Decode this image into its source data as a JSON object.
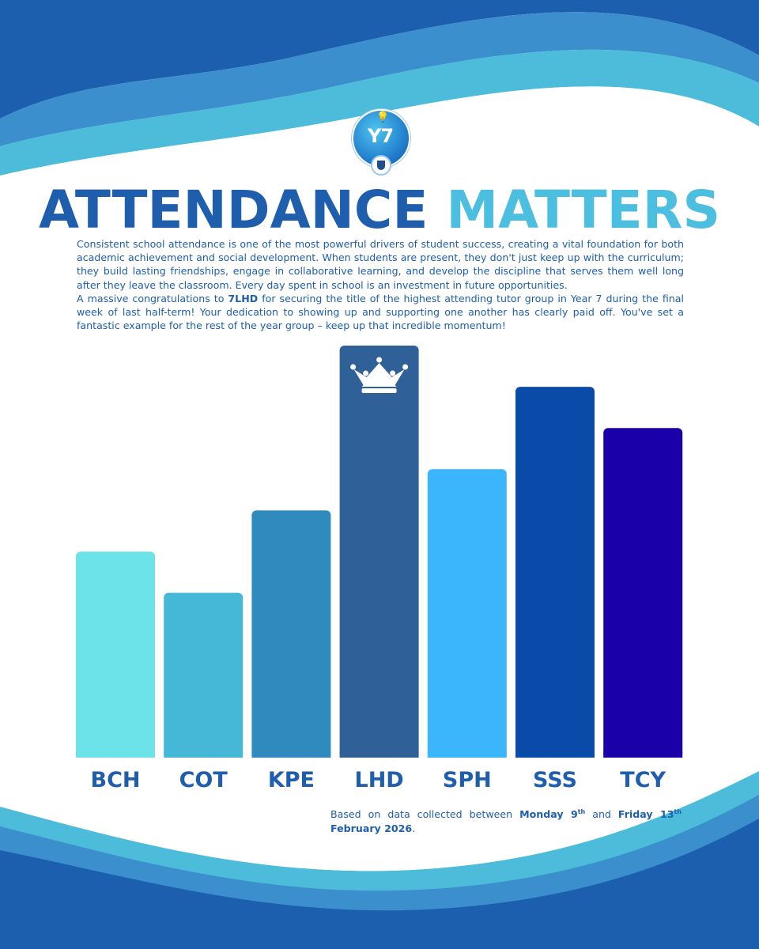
{
  "header": {
    "logo_text": "Y7",
    "title_part1": "ATTENDANCE",
    "title_part2": "MATTERS"
  },
  "intro": {
    "paragraph1": "Consistent school attendance is one of the most powerful drivers of student success, creating a vital foundation for both academic achievement and social development. When students are present, they don't just keep up with the curriculum; they build lasting friendships, engage in collaborative learning, and develop the discipline that serves them well long after they leave the classroom. Every day spent in school is an investment in future opportunities.",
    "paragraph2_before": "A massive congratulations to ",
    "paragraph2_highlight": "7LHD",
    "paragraph2_after": " for securing the title of the highest attending tutor group in Year 7 during the final week of last half-term! Your dedication to showing up and supporting one another has clearly paid off. You've set a fantastic example for the rest of the year group – keep up that incredible momentum!"
  },
  "chart_data": {
    "type": "bar",
    "title": "",
    "xlabel": "",
    "ylabel": "",
    "ylim": [
      0,
      100
    ],
    "categories": [
      "BCH",
      "COT",
      "KPE",
      "LHD",
      "SPH",
      "SSS",
      "TCY"
    ],
    "values": [
      50,
      40,
      60,
      100,
      70,
      90,
      80
    ],
    "colors": [
      "#6be3e8",
      "#44b8d6",
      "#2f8bbd",
      "#2f6098",
      "#3bb5fb",
      "#0a4aa8",
      "#1a00a8"
    ],
    "highlight": "LHD",
    "label_color": "#1e5eac"
  },
  "footer": {
    "note_before": "Based on data collected between ",
    "date_start": "Monday 9",
    "date_start_suffix": "th",
    "note_middle": " and ",
    "date_end": "Friday 13",
    "date_end_suffix": "th",
    "date_end_year": "February 2026",
    "note_end": "."
  },
  "colors": {
    "dark_blue": "#1e5eac",
    "mid_blue": "#3a8fcf",
    "light_blue": "#4cbfe0",
    "wave_light": "#79d0ea"
  }
}
